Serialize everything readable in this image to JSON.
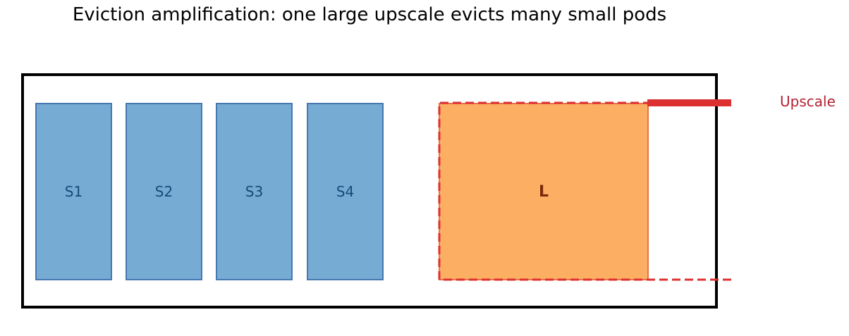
{
  "title": "Eviction amplification: one large upscale evicts many small pods",
  "small_pods": [
    "S1",
    "S2",
    "S3",
    "S4"
  ],
  "large_pod": "L",
  "upscale_label": "Upscale",
  "colors": {
    "small_fill": "#76abd3",
    "small_border": "#4878b0",
    "large_fill": "#fcae62",
    "large_border": "#e8704a",
    "upscale": "#dd3131",
    "upscale_label": "#b32234"
  }
}
